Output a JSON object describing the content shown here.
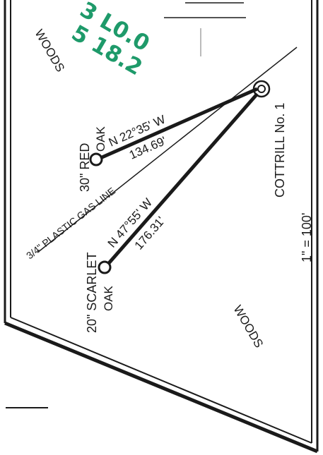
{
  "labels": {
    "woods_upper": "WOODS",
    "woods_lower": "WOODS",
    "well_name": "COTTRILL No. 1",
    "scale": "1\" = 100'",
    "tree_red_size": "30\" RED",
    "tree_red_species": "OAK",
    "red_bearing": "N 22°35' W",
    "red_distance": "134.69'",
    "gas_line": "3/4\" PLASTIC GAS LINE",
    "tree_scarlet_size": "20\" SCARLET",
    "tree_scarlet_species": "OAK",
    "scarlet_bearing": "N 47°55' W",
    "scarlet_distance": "176.31'"
  },
  "handwritten": {
    "line1": "3 L0.0",
    "line2": "5 18.2"
  },
  "colors": {
    "ink": "#1a1a1a",
    "annotation": "#1e9a6a"
  }
}
